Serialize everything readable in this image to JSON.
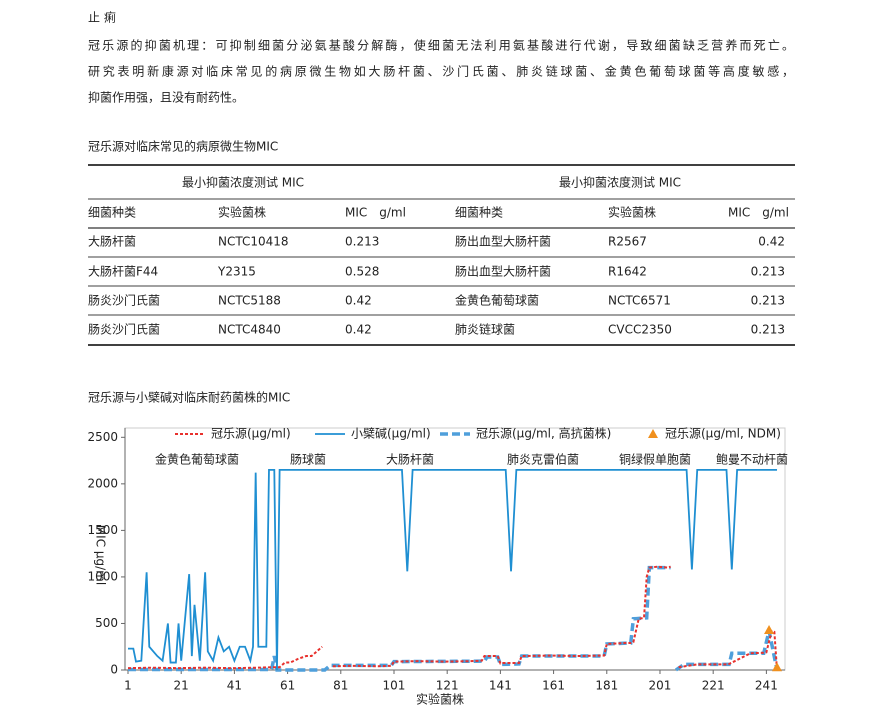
{
  "document": {
    "heading": "止 痢",
    "lines": [
      "冠乐源的抑菌机理：可抑制细菌分泌氨基酸分解酶，使细菌无法利用氨基酸进行代谢，导致细菌缺乏营养而死亡。",
      "研究表明新康源对临床常见的病原微生物如大肠杆菌、沙门氏菌、肺炎链球菌、金黄色葡萄球菌等高度敏感，",
      "抑菌作用强，且没有耐药性。"
    ]
  },
  "table": {
    "title": "冠乐源对临床常见的病原微生物MIC",
    "group_headers": [
      "最小抑菌浓度测试 MIC",
      "最小抑菌浓度测试 MIC"
    ],
    "columns": [
      "细菌种类",
      "实验菌株",
      "MIC　g/ml",
      "细菌种类",
      "实验菌株",
      "MIC　g/ml"
    ],
    "rows": [
      [
        "大肠杆菌",
        "NCTC10418",
        "0.213",
        "肠出血型大肠杆菌",
        "R2567",
        "0.42"
      ],
      [
        "大肠杆菌F44",
        "Y2315",
        "0.528",
        "肠出血型大肠杆菌",
        "R1642",
        "0.213"
      ],
      [
        "肠炎沙门氏菌",
        "NCTC5188",
        "0.42",
        "金黄色葡萄球菌",
        "NCTC6571",
        "0.213"
      ],
      [
        "肠炎沙门氏菌",
        "NCTC4840",
        "0.42",
        "肺炎链球菌",
        "CVCC2350",
        "0.213"
      ]
    ]
  },
  "chart_data": {
    "type": "line",
    "title": "冠乐源与小檗碱对临床耐药菌株的MIC",
    "x_label": "实验菌株",
    "y_label": "MIC μg/ml",
    "xlim": [
      1,
      248
    ],
    "xticks": [
      1,
      21,
      41,
      61,
      81,
      101,
      121,
      141,
      161,
      181,
      201,
      221,
      241
    ],
    "ylim": [
      0,
      2600
    ],
    "yticks": [
      0,
      500,
      1000,
      1500,
      2000,
      2500
    ],
    "annotations": [
      "金黄色葡萄球菌",
      "肠球菌",
      "大肠杆菌",
      "肺炎克雷伯菌",
      "铜绿假单胞菌",
      "鲍曼不动杆菌"
    ],
    "series": [
      {
        "name": "冠乐源(μg/ml)",
        "color": "#e8312d",
        "dash": "dotted",
        "x": [
          1,
          10,
          20,
          30,
          40,
          50,
          55,
          58,
          60,
          62,
          65,
          68,
          70,
          72,
          74,
          75,
          78,
          85,
          95,
          100,
          101,
          110,
          120,
          130,
          134,
          135,
          140,
          141,
          142,
          148,
          149,
          160,
          170,
          180,
          181,
          188,
          190,
          191,
          193,
          195,
          196,
          197,
          200,
          204,
          205,
          206,
          208,
          215,
          226,
          227,
          235,
          240,
          241,
          243,
          244,
          245
        ],
        "values": [
          20,
          25,
          20,
          25,
          20,
          25,
          30,
          30,
          80,
          80,
          120,
          150,
          150,
          200,
          250,
          null,
          40,
          45,
          40,
          45,
          90,
          95,
          90,
          95,
          100,
          150,
          150,
          70,
          75,
          75,
          150,
          155,
          150,
          155,
          280,
          290,
          290,
          300,
          550,
          560,
          1000,
          1100,
          1110,
          1100,
          1110,
          null,
          30,
          60,
          60,
          65,
          180,
          185,
          190,
          420,
          410,
          0
        ]
      },
      {
        "name": "小檗碱(μg/ml)",
        "color": "#1f8fd2",
        "dash": "solid",
        "x": [
          1,
          3,
          4,
          6,
          8,
          9,
          12,
          14,
          16,
          17,
          19,
          20,
          21,
          24,
          25,
          26,
          28,
          30,
          31,
          33,
          35,
          37,
          39,
          41,
          43,
          45,
          47,
          48,
          49,
          50,
          53,
          54,
          56,
          57,
          58,
          62,
          104,
          106,
          108,
          143,
          145,
          147,
          211,
          213,
          215,
          226,
          228,
          230,
          245
        ],
        "values": [
          230,
          230,
          90,
          100,
          1050,
          250,
          150,
          100,
          500,
          80,
          80,
          500,
          100,
          1030,
          150,
          700,
          100,
          1050,
          200,
          100,
          350,
          200,
          250,
          100,
          250,
          250,
          100,
          250,
          2120,
          250,
          250,
          2150,
          2150,
          0,
          2150,
          2150,
          2150,
          1060,
          2150,
          2150,
          1060,
          2150,
          2150,
          1080,
          2150,
          2150,
          1080,
          2150,
          2150
        ]
      },
      {
        "name": "冠乐源(μg/ml, 高抗菌株)",
        "color": "#4f9fdb",
        "dash": "dashed",
        "x": [
          1,
          55,
          56,
          57,
          75,
          77,
          100,
          101,
          135,
          136,
          140,
          141,
          148,
          149,
          180,
          181,
          190,
          191,
          196,
          197,
          205,
          206,
          207,
          210,
          227,
          228,
          240,
          242,
          245
        ],
        "values": [
          5,
          5,
          150,
          0,
          0,
          50,
          50,
          90,
          95,
          140,
          140,
          60,
          65,
          150,
          150,
          280,
          290,
          550,
          560,
          1100,
          1100,
          null,
          0,
          60,
          60,
          180,
          180,
          420,
          0
        ]
      },
      {
        "name": "冠乐源(μg/ml, NDM)",
        "color": "#f0901e",
        "dash": "marker",
        "x": [
          242,
          245
        ],
        "values": [
          430,
          30
        ]
      }
    ]
  }
}
